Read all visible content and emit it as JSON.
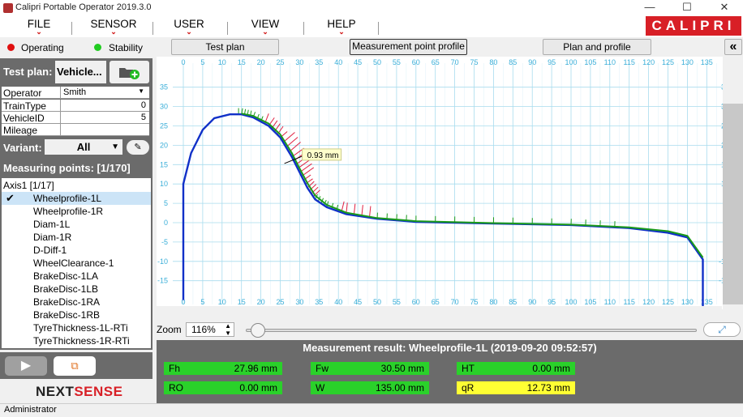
{
  "window": {
    "title": "Calipri Portable Operator 2019.3.0",
    "minimize": "—",
    "maximize": "☐",
    "close": "✕"
  },
  "menu": [
    "FILE",
    "SENSOR",
    "USER",
    "VIEW",
    "HELP"
  ],
  "logo": "CALIPRI",
  "status": {
    "operating": "Operating",
    "stability": "Stability",
    "operating_color": "#e01010",
    "stability_color": "#22cc22"
  },
  "tabs": {
    "test_plan": "Test plan",
    "measurement_point_profile": "Measurement point profile",
    "plan_and_profile": "Plan and profile"
  },
  "collapse_icon": "«",
  "test_plan": {
    "label": "Test plan:",
    "value": "Vehicle..."
  },
  "fields": [
    {
      "name": "Operator",
      "value": "Smith"
    },
    {
      "name": "TrainType",
      "value": "0"
    },
    {
      "name": "VehicleID",
      "value": "5"
    },
    {
      "name": "Mileage",
      "value": ""
    }
  ],
  "variant": {
    "label": "Variant:",
    "value": "All"
  },
  "measuring_points": {
    "label": "Measuring points: [1/170]",
    "group": "Axis1 [1/17]",
    "items": [
      "Wheelprofile-1L",
      "Wheelprofile-1R",
      "Diam-1L",
      "Diam-1R",
      "D-Diff-1",
      "WheelClearance-1",
      "BrakeDisc-1LA",
      "BrakeDisc-1LB",
      "BrakeDisc-1RA",
      "BrakeDisc-1RB",
      "TyreThickness-1L-RTi",
      "TyreThickness-1R-RTi"
    ],
    "selected_index": 0
  },
  "brand": "NEXTSENSE",
  "zoom": {
    "label": "Zoom",
    "value": "116%"
  },
  "result_title": "Measurement result: Wheelprofile-1L (2019-09-20 09:52:57)",
  "results": [
    {
      "label": "Fh",
      "value": "27.96 mm",
      "status": "ok"
    },
    {
      "label": "Fw",
      "value": "30.50 mm",
      "status": "ok"
    },
    {
      "label": "HT",
      "value": "0.00 mm",
      "status": "ok"
    },
    {
      "label": "RO",
      "value": "0.00 mm",
      "status": "ok"
    },
    {
      "label": "W",
      "value": "135.00 mm",
      "status": "ok"
    },
    {
      "label": "qR",
      "value": "12.73 mm",
      "status": "warn"
    }
  ],
  "annotation": "0.93 mm",
  "footer_user": "Administrator",
  "colors": {
    "panel_gray": "#6b6b6b",
    "ok_green": "#2ad12a",
    "warn_yellow": "#ffff33",
    "brand_red": "#d81f26",
    "profile_blue": "#1030c8",
    "reference_green": "#1a9a1a",
    "deviation_red": "#e02040",
    "grid_cyan": "#a8dcee"
  },
  "chart_data": {
    "type": "line",
    "x_ticks": [
      0,
      5,
      10,
      15,
      20,
      25,
      30,
      35,
      40,
      45,
      50,
      55,
      60,
      65,
      70,
      75,
      80,
      85,
      90,
      95,
      100,
      105,
      110,
      115,
      120,
      125,
      130,
      135
    ],
    "y_ticks": [
      35,
      30,
      25,
      20,
      15,
      10,
      5,
      0,
      -5,
      -10,
      -15
    ],
    "xlim": [
      0,
      135
    ],
    "ylim": [
      -20,
      37
    ],
    "grid": true,
    "series": [
      {
        "color": "#1030c8",
        "points": [
          [
            0,
            -20
          ],
          [
            0,
            10
          ],
          [
            2,
            18
          ],
          [
            5,
            24
          ],
          [
            8,
            27
          ],
          [
            12,
            28
          ],
          [
            15,
            28
          ],
          [
            18,
            27.2
          ],
          [
            22,
            25
          ],
          [
            25,
            22
          ],
          [
            28,
            17
          ],
          [
            30,
            13
          ],
          [
            32,
            9
          ],
          [
            34,
            6
          ],
          [
            37,
            4
          ],
          [
            42,
            2.2
          ],
          [
            50,
            1
          ],
          [
            60,
            0.2
          ],
          [
            80,
            -0.2
          ],
          [
            100,
            -0.6
          ],
          [
            115,
            -1.4
          ],
          [
            125,
            -2.6
          ],
          [
            130,
            -3.8
          ],
          [
            134,
            -9.5
          ],
          [
            134,
            -22
          ]
        ]
      },
      {
        "color": "#1a9a1a",
        "points": [
          [
            15,
            28.2
          ],
          [
            18,
            27.6
          ],
          [
            22,
            25.6
          ],
          [
            25,
            22.8
          ],
          [
            28,
            18
          ],
          [
            30,
            14
          ],
          [
            32,
            10.2
          ],
          [
            34,
            7
          ],
          [
            37,
            4.6
          ],
          [
            42,
            2.6
          ],
          [
            50,
            1.2
          ],
          [
            60,
            0.4
          ],
          [
            80,
            -0.1
          ],
          [
            100,
            -0.5
          ],
          [
            115,
            -1.2
          ],
          [
            125,
            -2.2
          ],
          [
            130,
            -3.4
          ],
          [
            134,
            -9
          ]
        ]
      }
    ]
  }
}
